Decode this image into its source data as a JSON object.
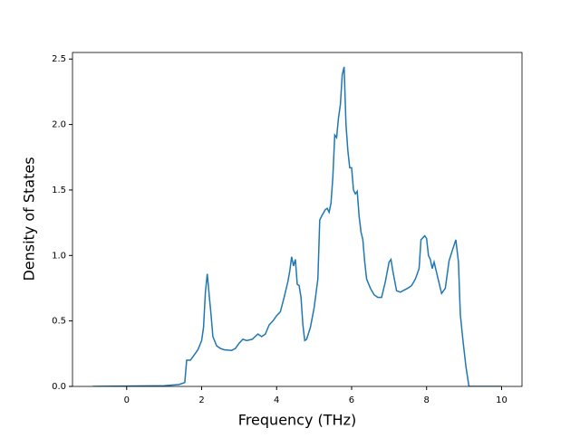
{
  "chart_data": {
    "type": "line",
    "xlabel": "Frequency (THz)",
    "ylabel": "Density of States",
    "x": [
      -0.9,
      1.0,
      1.4,
      1.55,
      1.6,
      1.7,
      1.8,
      1.9,
      2.0,
      2.05,
      2.1,
      2.15,
      2.2,
      2.25,
      2.3,
      2.4,
      2.5,
      2.6,
      2.8,
      2.9,
      3.0,
      3.1,
      3.2,
      3.35,
      3.5,
      3.6,
      3.7,
      3.8,
      3.9,
      4.0,
      4.1,
      4.2,
      4.3,
      4.35,
      4.4,
      4.45,
      4.5,
      4.55,
      4.6,
      4.65,
      4.7,
      4.75,
      4.8,
      4.9,
      5.0,
      5.1,
      5.15,
      5.2,
      5.3,
      5.35,
      5.4,
      5.45,
      5.5,
      5.55,
      5.6,
      5.65,
      5.7,
      5.75,
      5.8,
      5.85,
      5.9,
      5.95,
      6.0,
      6.05,
      6.1,
      6.15,
      6.2,
      6.25,
      6.3,
      6.35,
      6.4,
      6.5,
      6.6,
      6.7,
      6.8,
      6.9,
      7.0,
      7.05,
      7.1,
      7.2,
      7.3,
      7.5,
      7.6,
      7.7,
      7.8,
      7.85,
      7.95,
      8.0,
      8.05,
      8.1,
      8.15,
      8.2,
      8.3,
      8.4,
      8.5,
      8.6,
      8.7,
      8.78,
      8.85,
      8.9,
      8.97,
      9.05,
      9.13,
      10.0
    ],
    "values": [
      0,
      0.005,
      0.015,
      0.03,
      0.2,
      0.2,
      0.24,
      0.28,
      0.35,
      0.45,
      0.72,
      0.86,
      0.7,
      0.55,
      0.38,
      0.31,
      0.29,
      0.28,
      0.275,
      0.29,
      0.33,
      0.36,
      0.35,
      0.36,
      0.4,
      0.38,
      0.4,
      0.47,
      0.5,
      0.54,
      0.57,
      0.68,
      0.8,
      0.88,
      0.99,
      0.92,
      0.97,
      0.78,
      0.77,
      0.68,
      0.47,
      0.35,
      0.36,
      0.45,
      0.6,
      0.82,
      1.27,
      1.3,
      1.35,
      1.36,
      1.33,
      1.4,
      1.6,
      1.92,
      1.9,
      2.05,
      2.15,
      2.38,
      2.44,
      2.0,
      1.8,
      1.67,
      1.67,
      1.5,
      1.47,
      1.49,
      1.3,
      1.18,
      1.12,
      0.95,
      0.82,
      0.75,
      0.7,
      0.68,
      0.68,
      0.8,
      0.95,
      0.97,
      0.88,
      0.73,
      0.72,
      0.75,
      0.77,
      0.82,
      0.9,
      1.12,
      1.15,
      1.13,
      1.0,
      0.97,
      0.9,
      0.95,
      0.83,
      0.71,
      0.75,
      0.96,
      1.05,
      1.12,
      0.95,
      0.55,
      0.35,
      0.15,
      0,
      0
    ],
    "color": "#1f77b4",
    "xlim": [
      -1.445,
      10.545
    ],
    "xticks": [
      0,
      2,
      4,
      6,
      8,
      10
    ],
    "ylim": [
      0,
      2.55
    ],
    "yticks": [
      {
        "value": 0,
        "label": "0.0"
      },
      0.5,
      {
        "value": 1,
        "label": "1.0"
      },
      1.5,
      {
        "value": 2,
        "label": "2.0"
      },
      2.5
    ]
  }
}
